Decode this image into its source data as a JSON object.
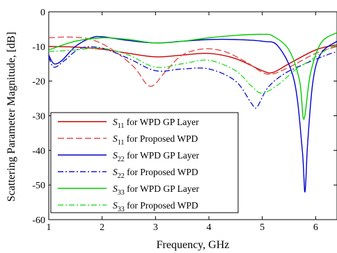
{
  "chart_data": {
    "type": "line",
    "title": "",
    "xlabel": "Frequency, GHz",
    "ylabel": "Scattering Parameter Magnitude, [dB]",
    "xlim": [
      1,
      6.4
    ],
    "ylim": [
      -60,
      0
    ],
    "xticks": [
      1,
      2,
      3,
      4,
      5,
      6
    ],
    "yticks": [
      0,
      -10,
      -20,
      -30,
      -40,
      -50,
      -60
    ],
    "grid": false,
    "legend_position": "bottom-left",
    "series": [
      {
        "name_sub": "11",
        "name_rest": " for WPD GP Layer",
        "color": "#cc0000",
        "dash": "solid",
        "points": [
          [
            1.0,
            -10.0
          ],
          [
            1.5,
            -10.2
          ],
          [
            2.0,
            -10.8
          ],
          [
            2.5,
            -12.0
          ],
          [
            3.0,
            -13.0
          ],
          [
            3.5,
            -12.5
          ],
          [
            4.0,
            -12.0
          ],
          [
            4.5,
            -13.5
          ],
          [
            5.0,
            -17.0
          ],
          [
            5.2,
            -17.5
          ],
          [
            5.5,
            -15.0
          ],
          [
            6.0,
            -11.0
          ],
          [
            6.4,
            -9.5
          ]
        ]
      },
      {
        "name_sub": "11",
        "name_rest": " for Proposed WPD",
        "color": "#e05050",
        "dash": "dashed",
        "points": [
          [
            1.0,
            -7.5
          ],
          [
            1.4,
            -7.3
          ],
          [
            1.8,
            -8.0
          ],
          [
            2.2,
            -11.0
          ],
          [
            2.6,
            -16.0
          ],
          [
            2.9,
            -21.5
          ],
          [
            3.2,
            -17.0
          ],
          [
            3.5,
            -12.5
          ],
          [
            3.9,
            -10.7
          ],
          [
            4.3,
            -11.5
          ],
          [
            4.7,
            -14.5
          ],
          [
            5.1,
            -18.0
          ],
          [
            5.5,
            -16.0
          ],
          [
            6.0,
            -12.0
          ],
          [
            6.4,
            -10.0
          ]
        ]
      },
      {
        "name_sub": "22",
        "name_rest": " for WPD GP Layer",
        "color": "#0000cc",
        "dash": "solid",
        "points": [
          [
            1.0,
            -12.5
          ],
          [
            1.1,
            -15.0
          ],
          [
            1.25,
            -14.0
          ],
          [
            1.5,
            -10.0
          ],
          [
            1.8,
            -7.5
          ],
          [
            2.0,
            -7.2
          ],
          [
            2.5,
            -8.3
          ],
          [
            3.0,
            -9.0
          ],
          [
            3.5,
            -8.5
          ],
          [
            4.0,
            -8.0
          ],
          [
            4.5,
            -8.0
          ],
          [
            5.0,
            -8.5
          ],
          [
            5.3,
            -10.0
          ],
          [
            5.6,
            -20.0
          ],
          [
            5.75,
            -40.0
          ],
          [
            5.8,
            -52.0
          ],
          [
            5.85,
            -38.0
          ],
          [
            5.95,
            -20.0
          ],
          [
            6.1,
            -12.0
          ],
          [
            6.4,
            -8.5
          ]
        ]
      },
      {
        "name_sub": "22",
        "name_rest": " for Proposed WPD",
        "color": "#1a1acc",
        "dash": "dashdot",
        "points": [
          [
            1.0,
            -13.0
          ],
          [
            1.1,
            -16.0
          ],
          [
            1.3,
            -14.0
          ],
          [
            1.6,
            -10.5
          ],
          [
            2.0,
            -10.5
          ],
          [
            2.5,
            -13.5
          ],
          [
            3.0,
            -17.0
          ],
          [
            3.5,
            -16.5
          ],
          [
            4.0,
            -16.5
          ],
          [
            4.5,
            -20.0
          ],
          [
            4.8,
            -26.5
          ],
          [
            4.9,
            -27.5
          ],
          [
            5.1,
            -22.0
          ],
          [
            5.4,
            -18.0
          ],
          [
            5.8,
            -15.0
          ],
          [
            6.2,
            -12.5
          ],
          [
            6.4,
            -11.5
          ]
        ]
      },
      {
        "name_sub": "33",
        "name_rest": " for WPD GP Layer",
        "color": "#00cc00",
        "dash": "solid",
        "points": [
          [
            1.0,
            -11.0
          ],
          [
            1.5,
            -8.5
          ],
          [
            2.0,
            -7.5
          ],
          [
            2.5,
            -8.0
          ],
          [
            3.0,
            -9.0
          ],
          [
            3.5,
            -8.5
          ],
          [
            4.0,
            -7.5
          ],
          [
            4.5,
            -6.8
          ],
          [
            5.0,
            -6.5
          ],
          [
            5.2,
            -7.0
          ],
          [
            5.5,
            -11.0
          ],
          [
            5.7,
            -20.0
          ],
          [
            5.78,
            -31.0
          ],
          [
            5.9,
            -18.0
          ],
          [
            6.1,
            -9.0
          ],
          [
            6.4,
            -6.0
          ]
        ]
      },
      {
        "name_sub": "33",
        "name_rest": " for Proposed WPD",
        "color": "#33dd33",
        "dash": "dashdot",
        "points": [
          [
            1.0,
            -11.5
          ],
          [
            1.5,
            -11.0
          ],
          [
            2.0,
            -10.5
          ],
          [
            2.5,
            -12.5
          ],
          [
            3.0,
            -16.0
          ],
          [
            3.5,
            -15.0
          ],
          [
            4.0,
            -14.0
          ],
          [
            4.5,
            -17.0
          ],
          [
            4.8,
            -21.5
          ],
          [
            5.0,
            -23.5
          ],
          [
            5.3,
            -21.0
          ],
          [
            5.6,
            -17.0
          ],
          [
            5.9,
            -14.0
          ],
          [
            6.2,
            -11.0
          ],
          [
            6.4,
            -9.5
          ]
        ]
      }
    ]
  }
}
